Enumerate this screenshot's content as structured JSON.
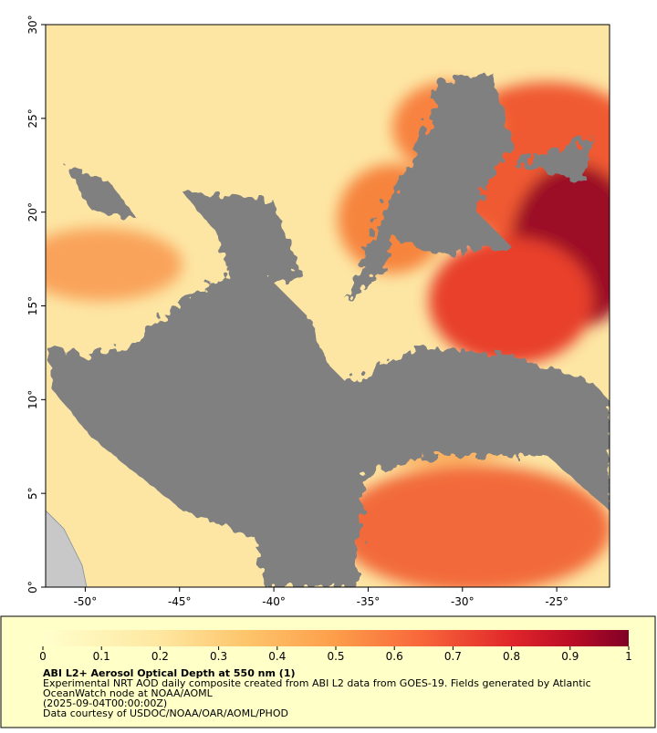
{
  "chart_data": {
    "type": "map",
    "xlim": [
      -52.1,
      -22.2
    ],
    "ylim": [
      0,
      30
    ],
    "xticks": [
      {
        "value": -50,
        "label": "-50°"
      },
      {
        "value": -45,
        "label": "-45°"
      },
      {
        "value": -40,
        "label": "-40°"
      },
      {
        "value": -35,
        "label": "-35°"
      },
      {
        "value": -30,
        "label": "-30°"
      },
      {
        "value": -25,
        "label": "-25°"
      }
    ],
    "yticks": [
      {
        "value": 0,
        "label": "0°"
      },
      {
        "value": 5,
        "label": "5°"
      },
      {
        "value": 10,
        "label": "10°"
      },
      {
        "value": 15,
        "label": "15°"
      },
      {
        "value": 20,
        "label": "20°"
      },
      {
        "value": 25,
        "label": "25°"
      },
      {
        "value": 30,
        "label": "30°"
      }
    ],
    "colorbar": {
      "lim": [
        0,
        1
      ],
      "ticks": [
        0,
        0.1,
        0.2,
        0.3,
        0.4,
        0.5,
        0.6,
        0.7,
        0.8,
        0.9,
        1
      ]
    },
    "title": "ABI L2+ Aerosol Optical Depth at 550 nm (1)",
    "description": [
      "Experimental NRT AOD daily composite created from ABI L2 data from GOES-19. Fields generated by Atlantic",
      "OceanWatch node at NOAA/AOML",
      "(2025-09-04T00:00:00Z)",
      "Data courtesy of USDOC/NOAA/OAR/AOML/PHOD"
    ]
  }
}
